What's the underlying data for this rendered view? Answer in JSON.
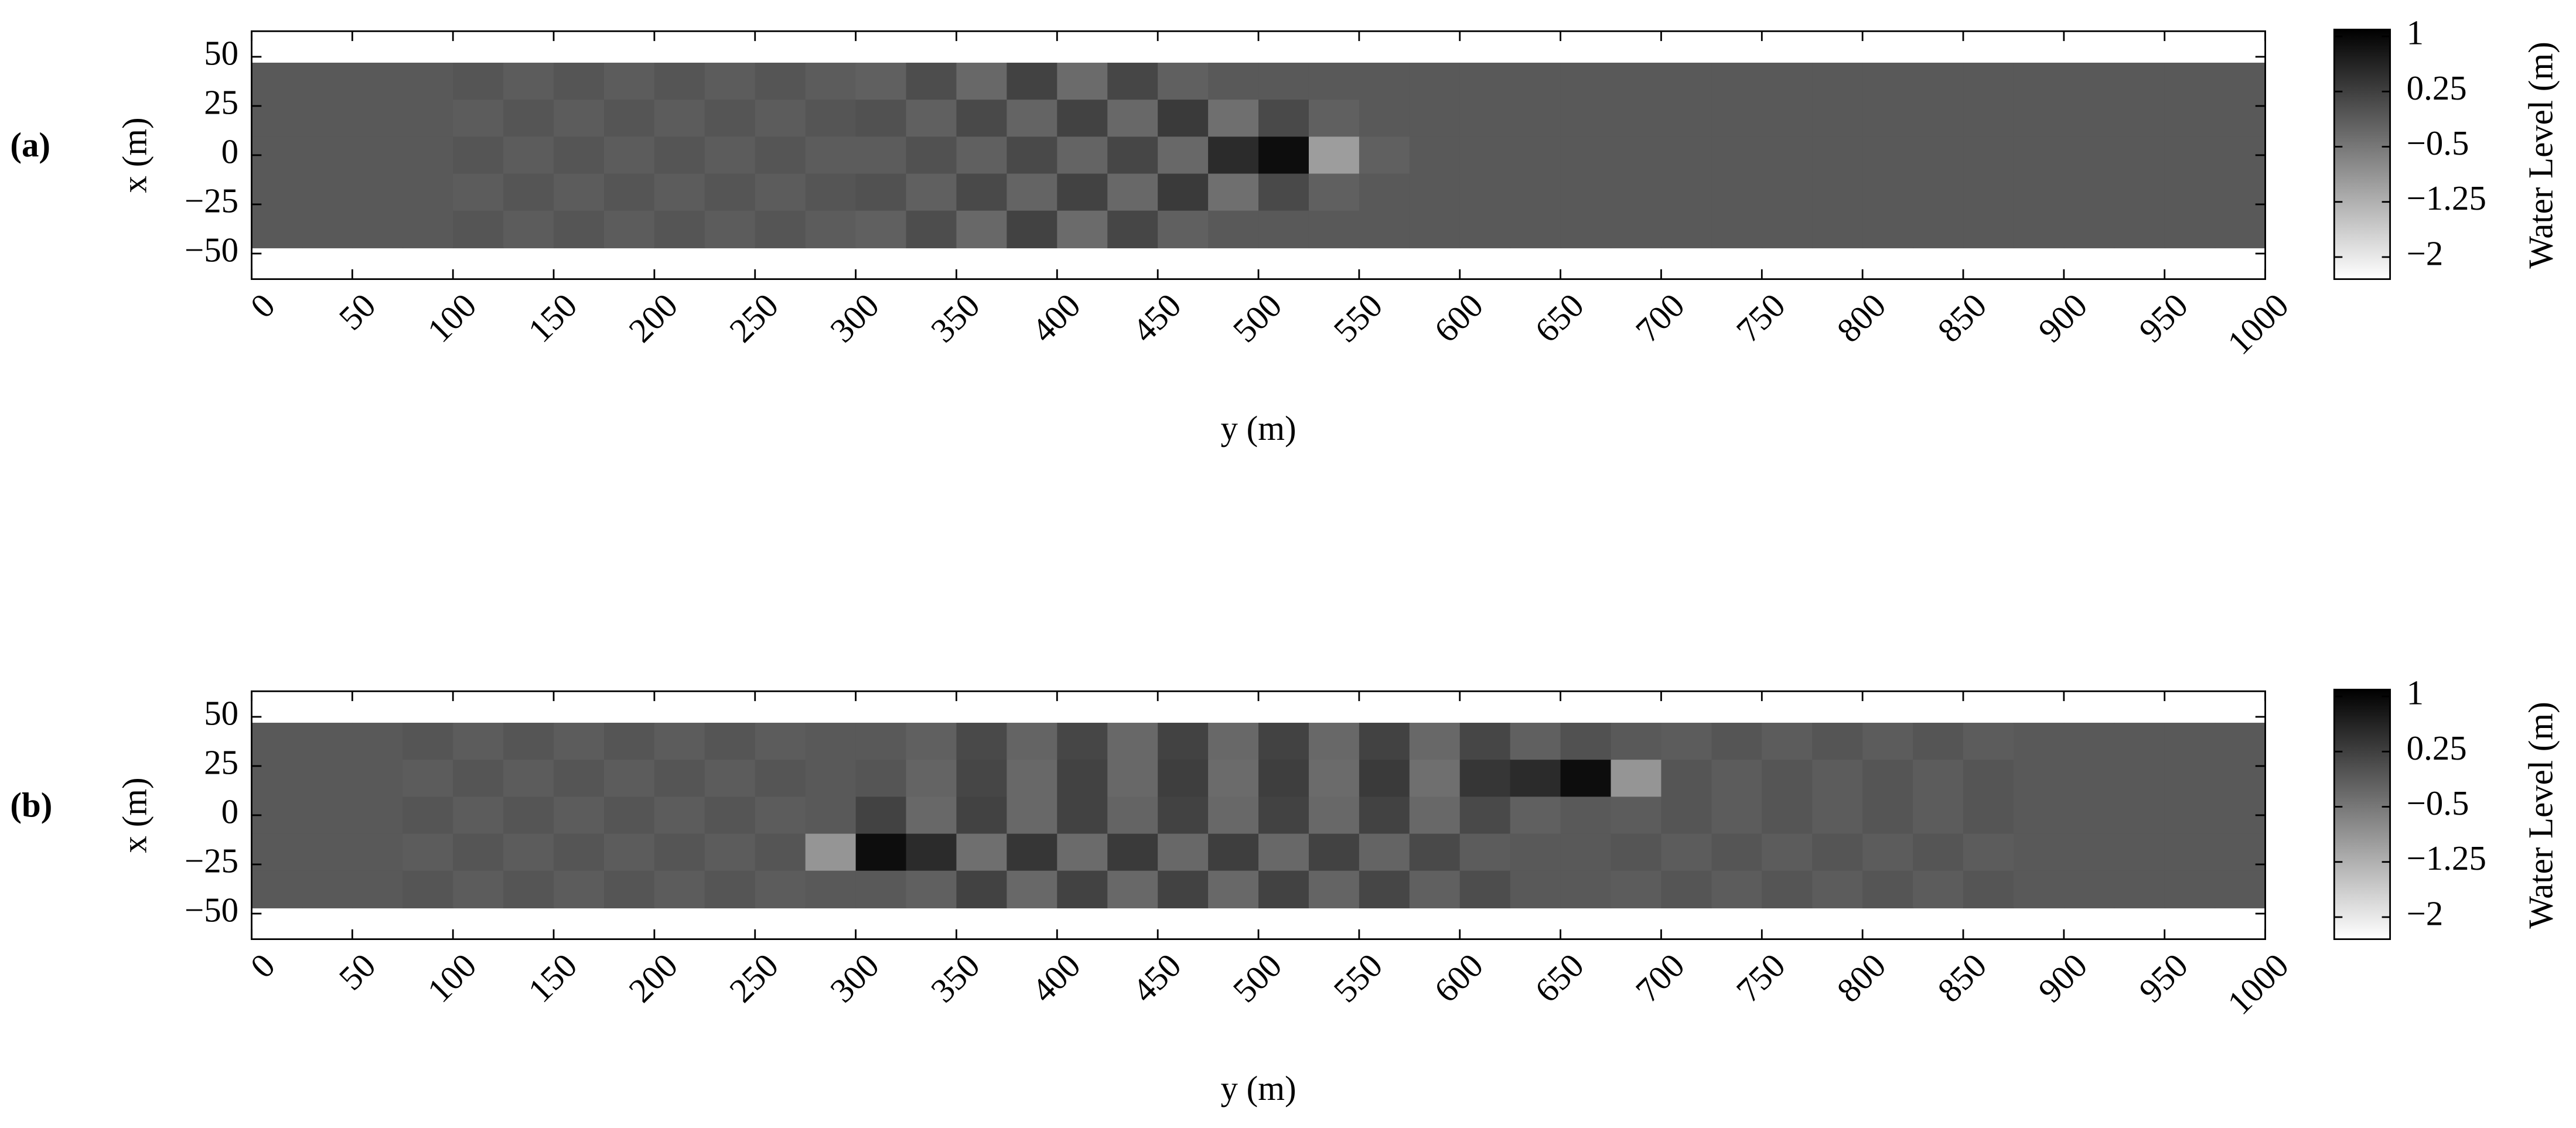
{
  "chart_data": [
    {
      "type": "heatmap",
      "panel_label": "(a)",
      "xlabel": "y (m)",
      "ylabel": "x (m)",
      "colorbar_label": "Water Level (m)",
      "xlim": [
        0,
        1000
      ],
      "xticks": [
        0,
        50,
        100,
        150,
        200,
        250,
        300,
        350,
        400,
        450,
        500,
        550,
        600,
        650,
        700,
        750,
        800,
        850,
        900,
        950,
        1000
      ],
      "ylim": [
        -63,
        63
      ],
      "yticks": [
        50,
        25,
        0,
        {
          "value": -25,
          "label": "−25"
        },
        {
          "value": -50,
          "label": "−50"
        }
      ],
      "zlim": [
        -2.3,
        1.07
      ],
      "zticks": [
        1,
        0.25,
        {
          "value": -0.5,
          "label": "−0.5"
        },
        {
          "value": -1.25,
          "label": "−1.25"
        },
        {
          "value": -2,
          "label": "−2"
        }
      ],
      "colormap": [
        "#ffffff",
        "#000000"
      ],
      "x": [
        12.5,
        37.5,
        62.5,
        87.5,
        112.5,
        137.5,
        162.5,
        187.5,
        212.5,
        237.5,
        262.5,
        287.5,
        312.5,
        337.5,
        362.5,
        387.5,
        412.5,
        437.5,
        462.5,
        487.5,
        512.5,
        537.5,
        562.5,
        587.5,
        612.5,
        637.5,
        662.5,
        687.5,
        712.5,
        737.5,
        762.5,
        787.5,
        812.5,
        837.5,
        862.5,
        887.5,
        912.5,
        937.5,
        962.5,
        987.5
      ],
      "y": [
        37.6,
        18.8,
        0,
        -18.8,
        -37.6
      ],
      "z": [
        [
          -0.1,
          -0.1,
          -0.1,
          -0.1,
          -0.05,
          -0.15,
          -0.05,
          -0.15,
          -0.05,
          -0.15,
          -0.05,
          -0.15,
          -0.2,
          0.05,
          -0.3,
          0.2,
          -0.35,
          0.15,
          -0.2,
          -0.1,
          -0.1,
          -0.1,
          -0.1,
          -0.1,
          -0.1,
          -0.1,
          -0.1,
          -0.1,
          -0.1,
          -0.1,
          -0.1,
          -0.1,
          -0.1,
          -0.1,
          -0.1,
          -0.1,
          -0.1,
          -0.1,
          -0.1,
          -0.1
        ],
        [
          -0.1,
          -0.1,
          -0.1,
          -0.1,
          -0.15,
          -0.05,
          -0.15,
          -0.05,
          -0.15,
          -0.05,
          -0.15,
          -0.05,
          0,
          -0.2,
          0.1,
          -0.25,
          0.2,
          -0.3,
          0.3,
          -0.4,
          0.1,
          -0.2,
          -0.1,
          -0.1,
          -0.1,
          -0.1,
          -0.1,
          -0.1,
          -0.1,
          -0.1,
          -0.1,
          -0.1,
          -0.1,
          -0.1,
          -0.1,
          -0.1,
          -0.1,
          -0.1,
          -0.1,
          -0.1
        ],
        [
          -0.1,
          -0.1,
          -0.1,
          -0.1,
          -0.05,
          -0.15,
          -0.05,
          -0.15,
          -0.05,
          -0.15,
          -0.05,
          -0.15,
          -0.15,
          0,
          -0.2,
          0.1,
          -0.25,
          0.15,
          -0.3,
          0.5,
          0.9,
          -1,
          -0.2,
          -0.1,
          -0.1,
          -0.1,
          -0.1,
          -0.1,
          -0.1,
          -0.1,
          -0.1,
          -0.1,
          -0.1,
          -0.1,
          -0.1,
          -0.1,
          -0.1,
          -0.1,
          -0.1,
          -0.1
        ],
        [
          -0.1,
          -0.1,
          -0.1,
          -0.1,
          -0.15,
          -0.05,
          -0.15,
          -0.05,
          -0.15,
          -0.05,
          -0.15,
          -0.05,
          0,
          -0.2,
          0.1,
          -0.25,
          0.2,
          -0.3,
          0.3,
          -0.4,
          0.1,
          -0.2,
          -0.1,
          -0.1,
          -0.1,
          -0.1,
          -0.1,
          -0.1,
          -0.1,
          -0.1,
          -0.1,
          -0.1,
          -0.1,
          -0.1,
          -0.1,
          -0.1,
          -0.1,
          -0.1,
          -0.1,
          -0.1
        ],
        [
          -0.1,
          -0.1,
          -0.1,
          -0.1,
          -0.05,
          -0.15,
          -0.05,
          -0.15,
          -0.05,
          -0.15,
          -0.05,
          -0.15,
          -0.2,
          0.05,
          -0.3,
          0.2,
          -0.35,
          0.15,
          -0.2,
          -0.1,
          -0.1,
          -0.1,
          -0.1,
          -0.1,
          -0.1,
          -0.1,
          -0.1,
          -0.1,
          -0.1,
          -0.1,
          -0.1,
          -0.1,
          -0.1,
          -0.1,
          -0.1,
          -0.1,
          -0.1,
          -0.1,
          -0.1,
          -0.1
        ]
      ]
    },
    {
      "type": "heatmap",
      "panel_label": "(b)",
      "xlabel": "y (m)",
      "ylabel": "x (m)",
      "colorbar_label": "Water Level (m)",
      "xlim": [
        0,
        1000
      ],
      "xticks": [
        0,
        50,
        100,
        150,
        200,
        250,
        300,
        350,
        400,
        450,
        500,
        550,
        600,
        650,
        700,
        750,
        800,
        850,
        900,
        950,
        1000
      ],
      "ylim": [
        -63,
        63
      ],
      "yticks": [
        50,
        25,
        0,
        {
          "value": -25,
          "label": "−25"
        },
        {
          "value": -50,
          "label": "−50"
        }
      ],
      "zlim": [
        -2.3,
        1.07
      ],
      "zticks": [
        1,
        0.25,
        {
          "value": -0.5,
          "label": "−0.5"
        },
        {
          "value": -1.25,
          "label": "−1.25"
        },
        {
          "value": -2,
          "label": "−2"
        }
      ],
      "colormap": [
        "#ffffff",
        "#000000"
      ],
      "x": [
        12.5,
        37.5,
        62.5,
        87.5,
        112.5,
        137.5,
        162.5,
        187.5,
        212.5,
        237.5,
        262.5,
        287.5,
        312.5,
        337.5,
        362.5,
        387.5,
        412.5,
        437.5,
        462.5,
        487.5,
        512.5,
        537.5,
        562.5,
        587.5,
        612.5,
        637.5,
        662.5,
        687.5,
        712.5,
        737.5,
        762.5,
        787.5,
        812.5,
        837.5,
        862.5,
        887.5,
        912.5,
        937.5,
        962.5,
        987.5
      ],
      "y": [
        37.6,
        18.8,
        0,
        -18.8,
        -37.6
      ],
      "z": [
        [
          -0.1,
          -0.1,
          -0.1,
          -0.05,
          -0.15,
          -0.05,
          -0.15,
          -0.05,
          -0.15,
          -0.05,
          -0.15,
          -0.1,
          -0.1,
          -0.2,
          0.1,
          -0.25,
          0.15,
          -0.3,
          0.2,
          -0.3,
          0.2,
          -0.3,
          0.2,
          -0.3,
          0.15,
          -0.2,
          0,
          -0.1,
          -0.15,
          -0.05,
          -0.15,
          -0.05,
          -0.15,
          -0.05,
          -0.15,
          -0.1,
          -0.1,
          -0.1,
          -0.1,
          -0.1
        ],
        [
          -0.1,
          -0.1,
          -0.1,
          -0.15,
          -0.05,
          -0.15,
          -0.05,
          -0.15,
          -0.05,
          -0.15,
          -0.05,
          -0.1,
          -0.05,
          -0.25,
          0.15,
          -0.3,
          0.2,
          -0.3,
          0.25,
          -0.35,
          0.25,
          -0.35,
          0.3,
          -0.4,
          0.35,
          0.5,
          0.9,
          -0.9,
          -0.05,
          -0.15,
          -0.05,
          -0.15,
          -0.05,
          -0.15,
          -0.05,
          -0.1,
          -0.1,
          -0.1,
          -0.1,
          -0.1
        ],
        [
          -0.1,
          -0.1,
          -0.1,
          -0.05,
          -0.15,
          -0.05,
          -0.15,
          -0.05,
          -0.15,
          -0.05,
          -0.15,
          -0.1,
          0.2,
          -0.3,
          0.2,
          -0.3,
          0.2,
          -0.25,
          0.2,
          -0.3,
          0.2,
          -0.3,
          0.2,
          -0.3,
          0.1,
          -0.2,
          -0.1,
          -0.15,
          -0.05,
          -0.15,
          -0.05,
          -0.15,
          -0.05,
          -0.15,
          -0.05,
          -0.1,
          -0.1,
          -0.1,
          -0.1,
          -0.1
        ],
        [
          -0.1,
          -0.1,
          -0.1,
          -0.15,
          -0.05,
          -0.15,
          -0.05,
          -0.15,
          -0.05,
          -0.15,
          -0.05,
          -0.9,
          0.9,
          0.5,
          -0.4,
          0.35,
          -0.35,
          0.3,
          -0.3,
          0.25,
          -0.3,
          0.2,
          -0.25,
          0.1,
          -0.15,
          -0.1,
          -0.1,
          -0.05,
          -0.15,
          -0.05,
          -0.15,
          -0.05,
          -0.15,
          -0.05,
          -0.15,
          -0.1,
          -0.1,
          -0.1,
          -0.1,
          -0.1
        ],
        [
          -0.1,
          -0.1,
          -0.1,
          -0.05,
          -0.15,
          -0.05,
          -0.15,
          -0.05,
          -0.15,
          -0.05,
          -0.15,
          -0.1,
          -0.1,
          -0.2,
          0.2,
          -0.3,
          0.2,
          -0.3,
          0.2,
          -0.3,
          0.2,
          -0.25,
          0.15,
          -0.2,
          0.05,
          -0.1,
          -0.1,
          -0.15,
          -0.05,
          -0.15,
          -0.05,
          -0.15,
          -0.05,
          -0.15,
          -0.05,
          -0.1,
          -0.1,
          -0.1,
          -0.1,
          -0.1
        ]
      ]
    }
  ]
}
